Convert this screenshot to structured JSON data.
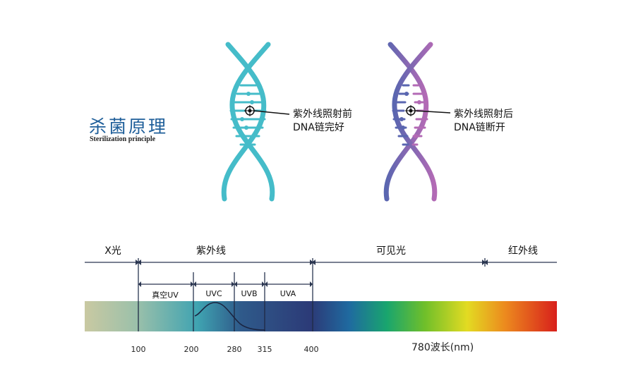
{
  "title": {
    "cn": "杀菌原理",
    "en": "Sterilization principle"
  },
  "dna": {
    "before": {
      "line1": "紫外线照射前",
      "line2": "DNA链完好"
    },
    "after": {
      "line1": "紫外线照射后",
      "line2": "DNA链断开"
    }
  },
  "spectrum": {
    "regions": [
      {
        "id": "xray",
        "label": "X光"
      },
      {
        "id": "uv",
        "label": "紫外线"
      },
      {
        "id": "visible",
        "label": "可见光"
      },
      {
        "id": "ir",
        "label": "红外线"
      }
    ],
    "uv_bands": [
      {
        "id": "vuv",
        "label": "真空UV"
      },
      {
        "id": "uvc",
        "label": "UVC"
      },
      {
        "id": "uvb",
        "label": "UVB"
      },
      {
        "id": "uva",
        "label": "UVA"
      }
    ],
    "ticks": [
      "100",
      "200",
      "280",
      "315",
      "400"
    ],
    "wavelength_label": "780波长(nm)"
  },
  "colors": {
    "title": "#1f5f9a",
    "dna_before": "#45bcc9",
    "dna_after_a": "#5a66b0",
    "dna_after_b": "#b36ab5"
  }
}
